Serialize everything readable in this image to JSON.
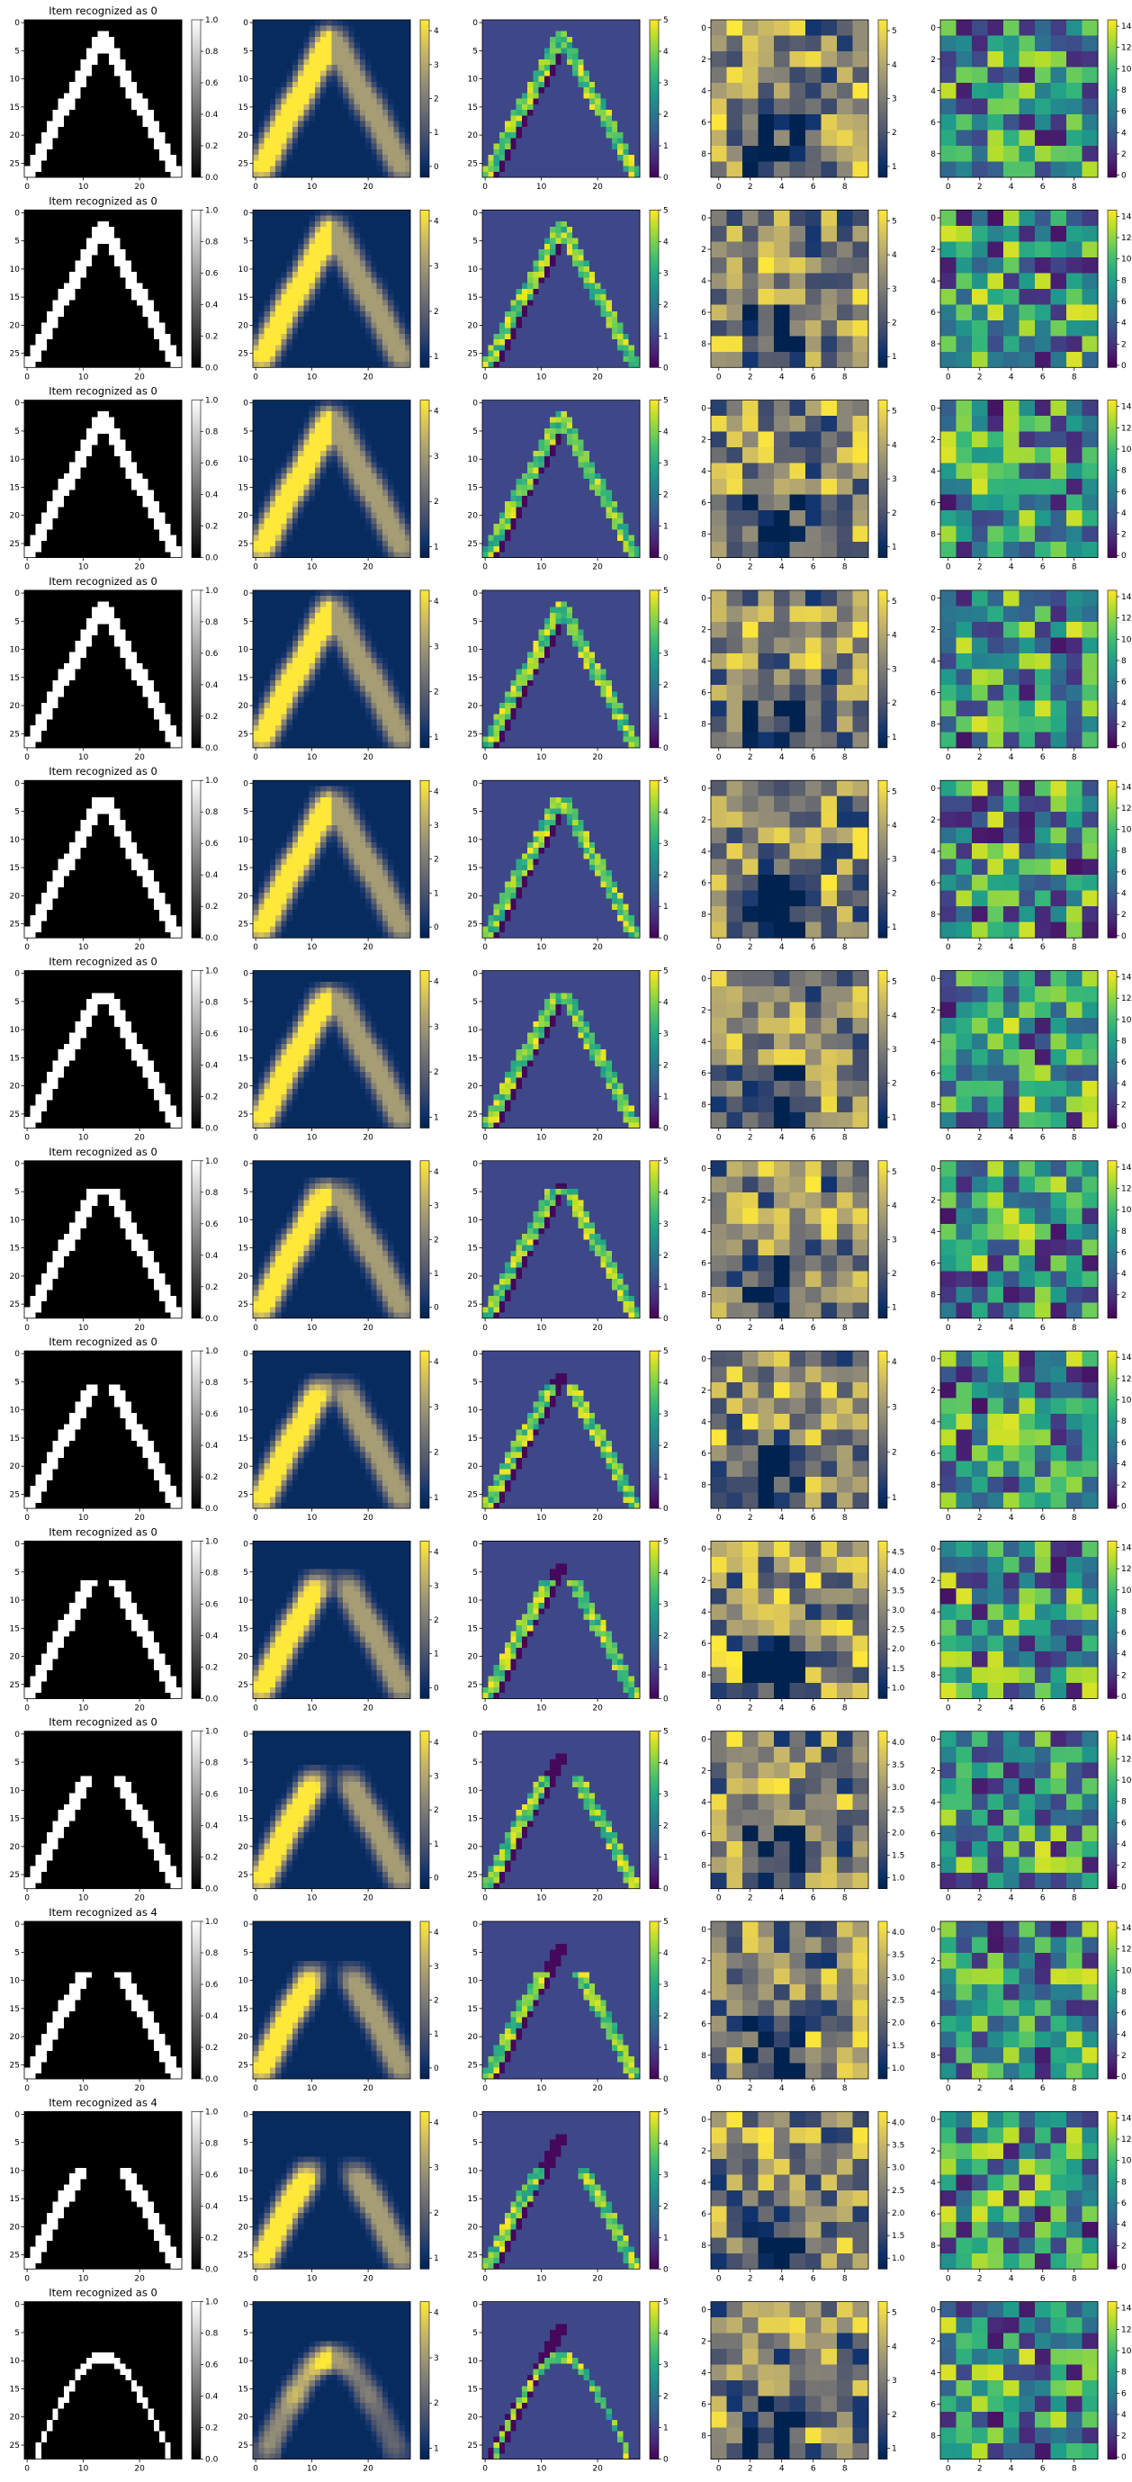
{
  "figure": {
    "rows": [
      {
        "title": "Item recognized as 0",
        "c2": [
          0,
          1,
          2,
          3,
          4
        ],
        "c3": [
          0,
          1,
          2,
          3,
          4,
          5
        ],
        "c4": [
          1,
          2,
          3,
          4,
          5
        ],
        "c5": [
          0,
          2,
          4,
          6,
          8,
          10,
          12,
          14
        ]
      },
      {
        "title": "Item recognized as 0",
        "c2": [
          1,
          2,
          3,
          4
        ],
        "c3": [
          0,
          1,
          2,
          3,
          4,
          5
        ],
        "c4": [
          1,
          2,
          3,
          4,
          5
        ],
        "c5": [
          0,
          2,
          4,
          6,
          8,
          10,
          12,
          14
        ]
      },
      {
        "title": "Item recognized as 0",
        "c2": [
          1,
          2,
          3,
          4
        ],
        "c3": [
          0,
          1,
          2,
          3,
          4,
          5
        ],
        "c4": [
          1,
          2,
          3,
          4,
          5
        ],
        "c5": [
          0,
          2,
          4,
          6,
          8,
          10,
          12,
          14
        ]
      },
      {
        "title": "Item recognized as 0",
        "c2": [
          1,
          2,
          3,
          4
        ],
        "c3": [
          0,
          1,
          2,
          3,
          4,
          5
        ],
        "c4": [
          1,
          2,
          3,
          4,
          5
        ],
        "c5": [
          0,
          2,
          4,
          6,
          8,
          10,
          12,
          14
        ]
      },
      {
        "title": "Item recognized as 0",
        "c2": [
          0,
          1,
          2,
          3,
          4
        ],
        "c3": [
          0,
          1,
          2,
          3,
          4,
          5
        ],
        "c4": [
          1,
          2,
          3,
          4,
          5
        ],
        "c5": [
          0,
          2,
          4,
          6,
          8,
          10,
          12,
          14
        ]
      },
      {
        "title": "Item recognized as 0",
        "c2": [
          1,
          2,
          3,
          4
        ],
        "c3": [
          0,
          1,
          2,
          3,
          4,
          5
        ],
        "c4": [
          1,
          2,
          3,
          4,
          5
        ],
        "c5": [
          0,
          2,
          4,
          6,
          8,
          10,
          12,
          14
        ]
      },
      {
        "title": "Item recognized as 0",
        "c2": [
          0,
          1,
          2,
          3,
          4
        ],
        "c3": [
          0,
          1,
          2,
          3,
          4,
          5
        ],
        "c4": [
          1,
          2,
          3,
          4,
          5
        ],
        "c5": [
          2,
          4,
          6,
          8,
          10,
          12,
          14
        ]
      },
      {
        "title": "Item recognized as 0",
        "c2": [
          1,
          2,
          3,
          4
        ],
        "c3": [
          0,
          1,
          2,
          3,
          4,
          5
        ],
        "c4": [
          1,
          2,
          3,
          4
        ],
        "c5": [
          0,
          2,
          4,
          6,
          8,
          10,
          12,
          14
        ]
      },
      {
        "title": "Item recognized as 0",
        "c2": [
          0,
          1,
          2,
          3,
          4
        ],
        "c3": [
          0,
          1,
          2,
          3,
          4,
          5
        ],
        "c4": [
          1.0,
          1.5,
          2.0,
          2.5,
          3.0,
          3.5,
          4.0,
          4.5
        ],
        "c5": [
          0,
          2,
          4,
          6,
          8,
          10,
          12,
          14
        ]
      },
      {
        "title": "Item recognized as 0",
        "c2": [
          0,
          1,
          2,
          3,
          4
        ],
        "c3": [
          0,
          1,
          2,
          3,
          4,
          5
        ],
        "c4": [
          1.0,
          1.5,
          2.0,
          2.5,
          3.0,
          3.5,
          4.0
        ],
        "c5": [
          0,
          2,
          4,
          6,
          8,
          10,
          12,
          14
        ]
      },
      {
        "title": "Item recognized as 4",
        "c2": [
          0,
          1,
          2,
          3,
          4
        ],
        "c3": [
          0,
          1,
          2,
          3,
          4,
          5
        ],
        "c4": [
          1.0,
          1.5,
          2.0,
          2.5,
          3.0,
          3.5,
          4.0
        ],
        "c5": [
          0,
          2,
          4,
          6,
          8,
          10,
          12,
          14
        ]
      },
      {
        "title": "Item recognized as 4",
        "c2": [
          1,
          2,
          3,
          4
        ],
        "c3": [
          0,
          1,
          2,
          3,
          4,
          5
        ],
        "c4": [
          1.0,
          1.5,
          2.0,
          2.5,
          3.0,
          3.5,
          4.0
        ],
        "c5": [
          0,
          2,
          4,
          6,
          8,
          10,
          12,
          14
        ]
      },
      {
        "title": "Item recognized as 0",
        "c2": [
          1,
          2,
          3,
          4
        ],
        "c3": [
          0,
          1,
          2,
          3,
          4,
          5
        ],
        "c4": [
          1,
          2,
          3,
          4,
          5
        ],
        "c5": [
          0,
          2,
          4,
          6,
          8,
          10,
          12,
          14
        ]
      }
    ]
  },
  "chart_data": {
    "type": "heatmap",
    "layout": "13 rows x 5 columns grid of image panels, each with a colorbar",
    "columns": [
      {
        "name": "",
        "size": 28,
        "colormap": "gray",
        "xticks": [
          0,
          10,
          20
        ],
        "yticks": [
          0,
          5,
          10,
          15,
          20,
          25
        ],
        "vrange": [
          0.0,
          1.0
        ],
        "colorbar_ticks": [
          "0.0",
          "0.2",
          "0.4",
          "0.6",
          "0.8",
          "1.0"
        ]
      },
      {
        "name": "",
        "size": 28,
        "colormap": "cividis",
        "xticks": [
          0,
          10,
          20
        ],
        "yticks": [
          0,
          5,
          10,
          15,
          20,
          25
        ]
      },
      {
        "name": "",
        "size": 28,
        "colormap": "viridis",
        "xticks": [
          0,
          10,
          20
        ],
        "yticks": [
          0,
          5,
          10,
          15,
          20,
          25
        ],
        "vrange": [
          0,
          5
        ]
      },
      {
        "name": "",
        "size": 10,
        "colormap": "cividis",
        "xticks": [
          0,
          2,
          4,
          6,
          8
        ],
        "yticks": [
          0,
          2,
          4,
          6,
          8
        ]
      },
      {
        "name": "",
        "size": 10,
        "colormap": "viridis",
        "xticks": [
          0,
          2,
          4,
          6,
          8
        ],
        "yticks": [
          0,
          2,
          4,
          6,
          8
        ],
        "vrange": [
          0,
          14
        ]
      }
    ],
    "titles": [
      "Item recognized as 0",
      "Item recognized as 0",
      "Item recognized as 0",
      "Item recognized as 0",
      "Item recognized as 0",
      "Item recognized as 0",
      "Item recognized as 0",
      "Item recognized as 0",
      "Item recognized as 0",
      "Item recognized as 0",
      "Item recognized as 4",
      "Item recognized as 4",
      "Item recognized as 0"
    ],
    "input_shapes": [
      {
        "shape": "inverted V",
        "apex_gap": 0
      },
      {
        "shape": "inverted V",
        "apex_gap": 0
      },
      {
        "shape": "inverted V",
        "apex_gap": 0
      },
      {
        "shape": "inverted V",
        "apex_gap": 0
      },
      {
        "shape": "inverted V",
        "apex_gap": 1
      },
      {
        "shape": "inverted V",
        "apex_gap": 2
      },
      {
        "shape": "inverted V",
        "apex_gap": 3
      },
      {
        "shape": "inverted V",
        "apex_gap": 4
      },
      {
        "shape": "inverted V",
        "apex_gap": 5
      },
      {
        "shape": "inverted V",
        "apex_gap": 6
      },
      {
        "shape": "inverted V",
        "apex_gap": 7
      },
      {
        "shape": "inverted V",
        "apex_gap": 8
      },
      {
        "shape": "arch",
        "apex_gap": 0
      }
    ],
    "colors": {
      "gray_low": "#000000",
      "gray_high": "#ffffff",
      "cividis_low": "#00224e",
      "cividis_high": "#fee838",
      "viridis_low": "#440154",
      "viridis_high": "#fde725"
    }
  }
}
